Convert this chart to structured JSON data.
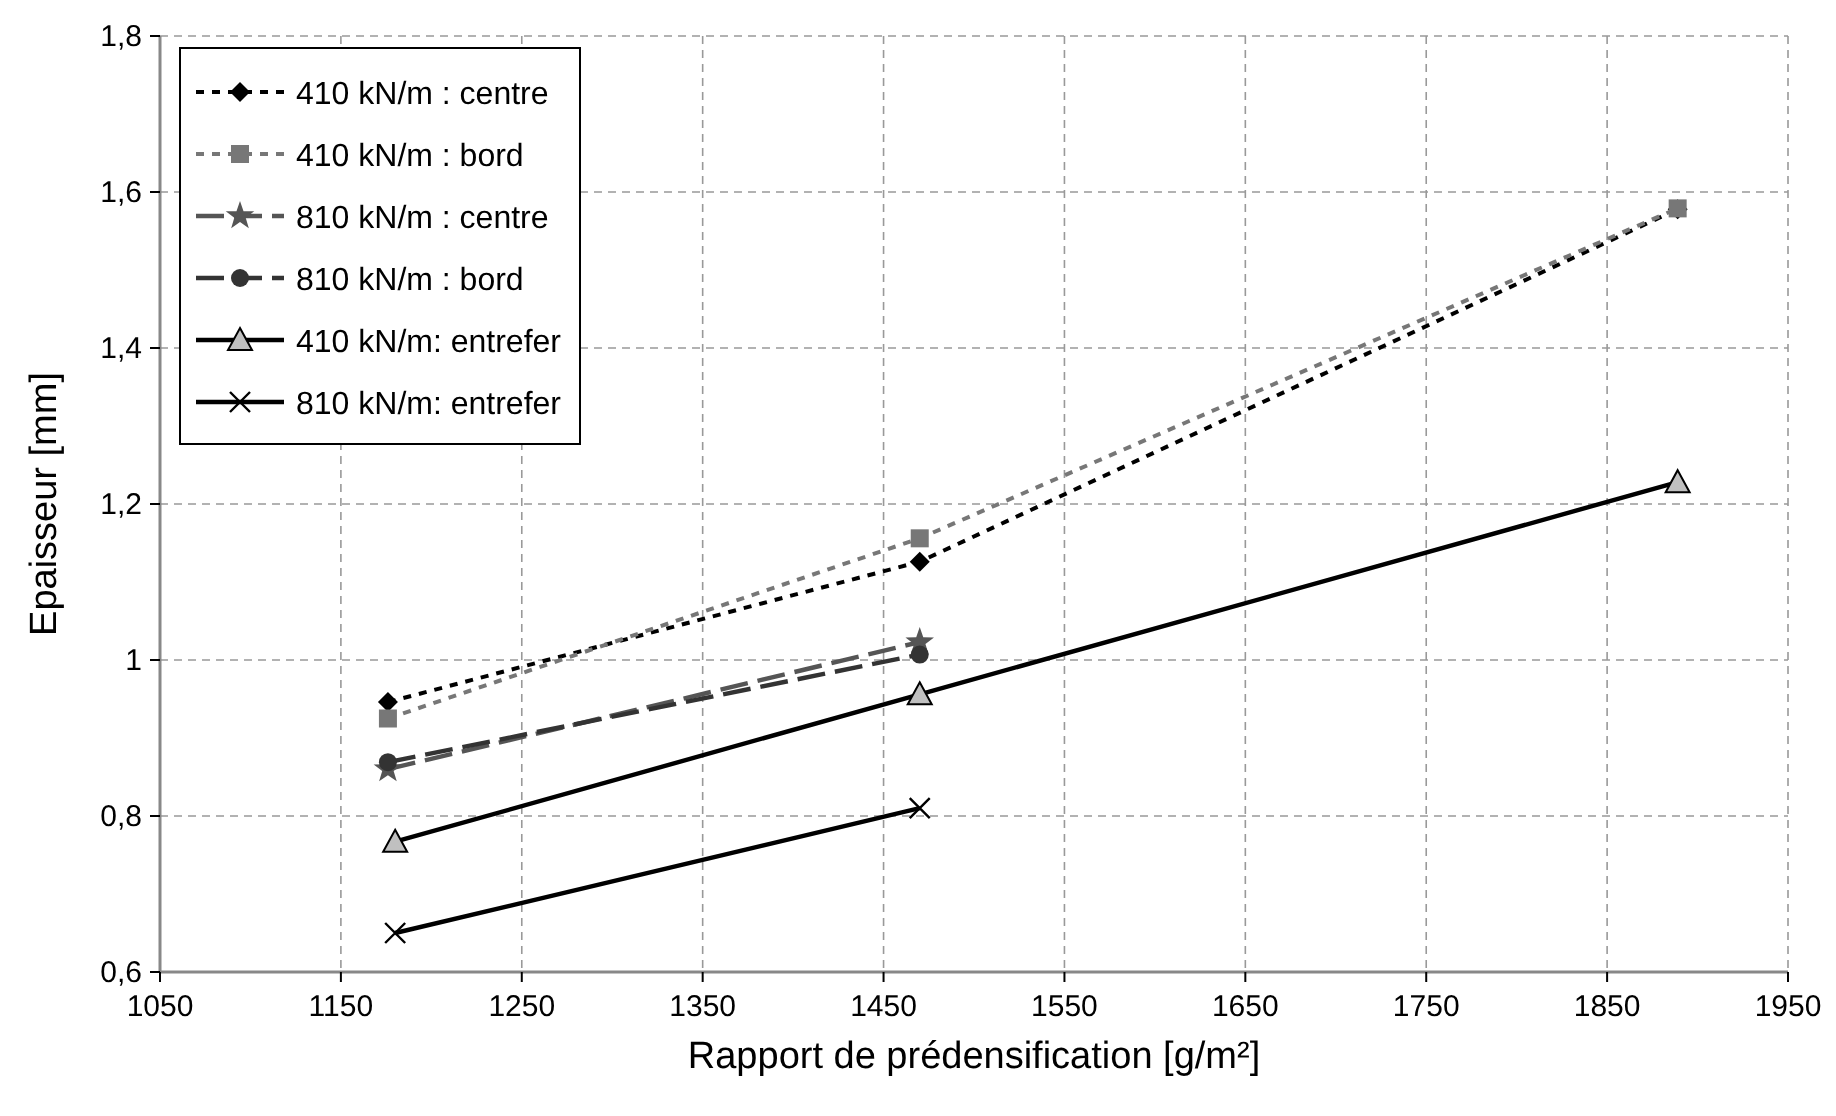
{
  "chart_data": {
    "type": "line",
    "xlabel": "Rapport de prédensification [g/m²]",
    "ylabel": "Epaisseur [mm]",
    "xlim": [
      1050,
      1950
    ],
    "xticks": [
      1050,
      1150,
      1250,
      1350,
      1450,
      1550,
      1650,
      1750,
      1850,
      1950
    ],
    "ylim": [
      0.6,
      1.8
    ],
    "yticks": [
      {
        "value": 0.6,
        "label": "0,6"
      },
      {
        "value": 0.8,
        "label": "0,8"
      },
      1,
      {
        "value": 1.2,
        "label": "1,2"
      },
      {
        "value": 1.4,
        "label": "1,4"
      },
      {
        "value": 1.6,
        "label": "1,6"
      },
      {
        "value": 1.8,
        "label": "1,8"
      }
    ],
    "grid": true,
    "legend": "top left",
    "series": [
      {
        "name": "410 kN/m : centre",
        "color": "#000000",
        "marker": "diamond",
        "line_style": "dotted",
        "x": [
          1176,
          1470,
          1889
        ],
        "values": [
          0.946,
          1.126,
          1.578
        ]
      },
      {
        "name": "410 kN/m : bord",
        "color": "#777777",
        "marker": "square",
        "line_style": "dotted",
        "x": [
          1176,
          1470,
          1889
        ],
        "values": [
          0.925,
          1.156,
          1.579
        ]
      },
      {
        "name": "810 kN/m : centre",
        "color": "#555555",
        "marker": "star",
        "line_style": "dashed",
        "x": [
          1176,
          1470
        ],
        "values": [
          0.86,
          1.023
        ]
      },
      {
        "name": "810 kN/m : bord",
        "color": "#333333",
        "marker": "circle",
        "line_style": "dashed",
        "x": [
          1176,
          1470
        ],
        "values": [
          0.869,
          1.007
        ]
      },
      {
        "name": "410 kN/m: entrefer",
        "color": "#000000",
        "marker": "triangle",
        "line_style": "solid",
        "x": [
          1180,
          1470,
          1889
        ],
        "values": [
          0.767,
          0.956,
          1.228
        ]
      },
      {
        "name": "810 kN/m: entrefer",
        "color": "#000000",
        "marker": "cross",
        "line_style": "solid",
        "x": [
          1180,
          1470
        ],
        "values": [
          0.65,
          0.81
        ]
      }
    ]
  }
}
